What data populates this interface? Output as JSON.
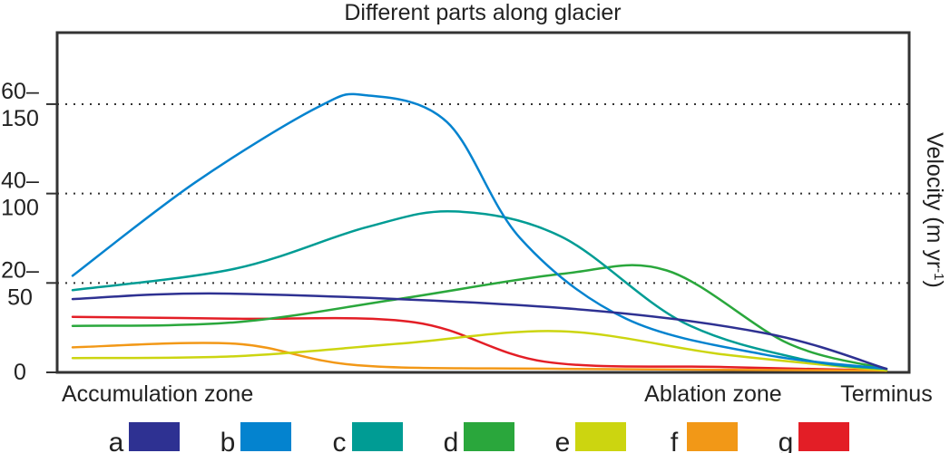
{
  "chart_data": {
    "type": "line",
    "title": "Different parts along glacier",
    "ylabel_main": "Velocity (m yr",
    "ylabel_sup": "-1",
    "ylabel_tail": ")",
    "ylim": [
      0,
      190
    ],
    "grid": "dotted horizontal at 50, 100, 150",
    "legend_position": "bottom",
    "y_ticks": [
      {
        "value": 0,
        "lines": [
          "0"
        ]
      },
      {
        "value": 50,
        "lines": [
          "20–",
          "50"
        ]
      },
      {
        "value": 100,
        "lines": [
          "40–",
          "100"
        ]
      },
      {
        "value": 150,
        "lines": [
          "60–",
          "150"
        ]
      }
    ],
    "x_labels": [
      {
        "x": 0,
        "label": "Accumulation zone",
        "anchor": "start"
      },
      {
        "x": 0.787,
        "label": "Ablation zone",
        "anchor": "middle"
      },
      {
        "x": 1,
        "label": "Terminus",
        "anchor": "middle"
      }
    ],
    "x_range": [
      0,
      1
    ],
    "series": [
      {
        "name": "a",
        "color": "#2e3192",
        "x": [
          0,
          0.2,
          0.6,
          0.85,
          1
        ],
        "y": [
          41,
          44,
          36,
          22,
          2
        ]
      },
      {
        "name": "b",
        "color": "#0483cf",
        "x": [
          0,
          0.15,
          0.3,
          0.36,
          0.46,
          0.55,
          0.68,
          0.85,
          1
        ],
        "y": [
          54,
          106,
          148,
          155,
          140,
          75,
          30,
          10,
          2
        ]
      },
      {
        "name": "c",
        "color": "#009c94",
        "x": [
          0,
          0.2,
          0.36,
          0.47,
          0.6,
          0.75,
          0.9,
          1
        ],
        "y": [
          46,
          58,
          81,
          90,
          76,
          28,
          7,
          2
        ]
      },
      {
        "name": "d",
        "color": "#2aa73c",
        "x": [
          0,
          0.2,
          0.4,
          0.6,
          0.73,
          0.88,
          1
        ],
        "y": [
          26,
          28,
          41,
          55,
          57,
          16,
          2
        ]
      },
      {
        "name": "e",
        "color": "#ccd510",
        "x": [
          0,
          0.2,
          0.4,
          0.6,
          0.8,
          1
        ],
        "y": [
          8,
          9,
          16,
          23,
          10,
          1
        ]
      },
      {
        "name": "f",
        "color": "#f29817",
        "x": [
          0,
          0.2,
          0.35,
          0.6,
          1
        ],
        "y": [
          14,
          16,
          4,
          2,
          1
        ]
      },
      {
        "name": "g",
        "color": "#e31e26",
        "x": [
          0,
          0.2,
          0.42,
          0.58,
          0.8,
          1
        ],
        "y": [
          31,
          30,
          28,
          6,
          3,
          1
        ]
      }
    ]
  }
}
